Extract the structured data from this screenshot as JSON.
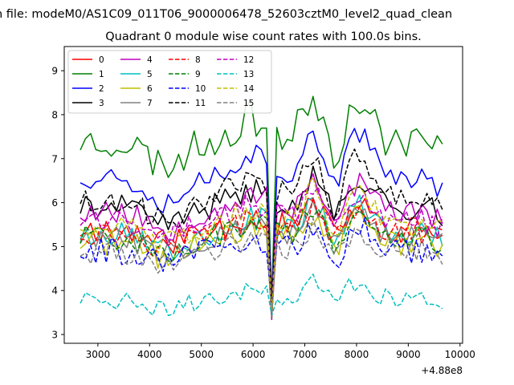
{
  "chart_data": {
    "type": "line",
    "suptitle": "n file: modeM0/AS1C09_011T06_9000006478_52603cztM0_level2_quad_clean",
    "title": "Quadrant 0 module wise count rates with 100.0s bins.",
    "xlabel": "",
    "ylabel": "",
    "x_offset_label": "+4.88e8",
    "xlim": [
      2350,
      10050
    ],
    "ylim": [
      2.8,
      9.55
    ],
    "xticks": [
      3000,
      4000,
      5000,
      6000,
      7000,
      8000,
      9000,
      10000
    ],
    "xtick_labels": [
      "3000",
      "4000",
      "5000",
      "6000",
      "7000",
      "8000",
      "9000",
      "10000"
    ],
    "yticks": [
      3,
      4,
      5,
      6,
      7,
      8,
      9
    ],
    "ytick_labels": [
      "3",
      "4",
      "5",
      "6",
      "7",
      "8",
      "9"
    ],
    "grid": false,
    "legend_position": "upper-left",
    "legend_columns": 4,
    "x_sampling": {
      "start": 2660,
      "step": 100,
      "count": 71
    },
    "series": [
      {
        "name": "0",
        "color": "#ff0000",
        "dash": "solid",
        "base": 5.4,
        "amp": 1.0,
        "noise": 0.3,
        "seed": 11
      },
      {
        "name": "1",
        "color": "#008000",
        "dash": "solid",
        "base": 7.4,
        "amp": 1.8,
        "noise": 0.4,
        "seed": 23
      },
      {
        "name": "2",
        "color": "#0000ff",
        "dash": "solid",
        "base": 6.6,
        "amp": 1.8,
        "noise": 0.3,
        "seed": 37
      },
      {
        "name": "3",
        "color": "#000000",
        "dash": "solid",
        "base": 5.9,
        "amp": 1.3,
        "noise": 0.3,
        "seed": 41
      },
      {
        "name": "4",
        "color": "#bf00bf",
        "dash": "solid",
        "base": 5.8,
        "amp": 1.3,
        "noise": 0.3,
        "seed": 53
      },
      {
        "name": "5",
        "color": "#00bfbf",
        "dash": "solid",
        "base": 5.3,
        "amp": 1.2,
        "noise": 0.28,
        "seed": 67
      },
      {
        "name": "6",
        "color": "#bfbf00",
        "dash": "solid",
        "base": 5.1,
        "amp": 1.2,
        "noise": 0.3,
        "seed": 71
      },
      {
        "name": "7",
        "color": "#808080",
        "dash": "solid",
        "base": 5.2,
        "amp": 1.1,
        "noise": 0.28,
        "seed": 83
      },
      {
        "name": "8",
        "color": "#ff0000",
        "dash": "dashed",
        "base": 5.3,
        "amp": 1.0,
        "noise": 0.28,
        "seed": 97
      },
      {
        "name": "9",
        "color": "#008000",
        "dash": "dashed",
        "base": 5.2,
        "amp": 1.1,
        "noise": 0.28,
        "seed": 101
      },
      {
        "name": "10",
        "color": "#0000ff",
        "dash": "dashed",
        "base": 4.9,
        "amp": 1.0,
        "noise": 0.3,
        "seed": 113
      },
      {
        "name": "11",
        "color": "#000000",
        "dash": "dashed",
        "base": 6.1,
        "amp": 1.8,
        "noise": 0.3,
        "seed": 127
      },
      {
        "name": "12",
        "color": "#bf00bf",
        "dash": "dashed",
        "base": 5.6,
        "amp": 1.1,
        "noise": 0.28,
        "seed": 131
      },
      {
        "name": "13",
        "color": "#00bfbf",
        "dash": "dashed",
        "base": 3.8,
        "amp": 0.8,
        "noise": 0.22,
        "seed": 149
      },
      {
        "name": "14",
        "color": "#bfbf00",
        "dash": "dashed",
        "base": 5.5,
        "amp": 1.5,
        "noise": 0.28,
        "seed": 151
      },
      {
        "name": "15",
        "color": "#808080",
        "dash": "dashed",
        "base": 4.9,
        "amp": 1.0,
        "noise": 0.3,
        "seed": 163
      }
    ]
  }
}
